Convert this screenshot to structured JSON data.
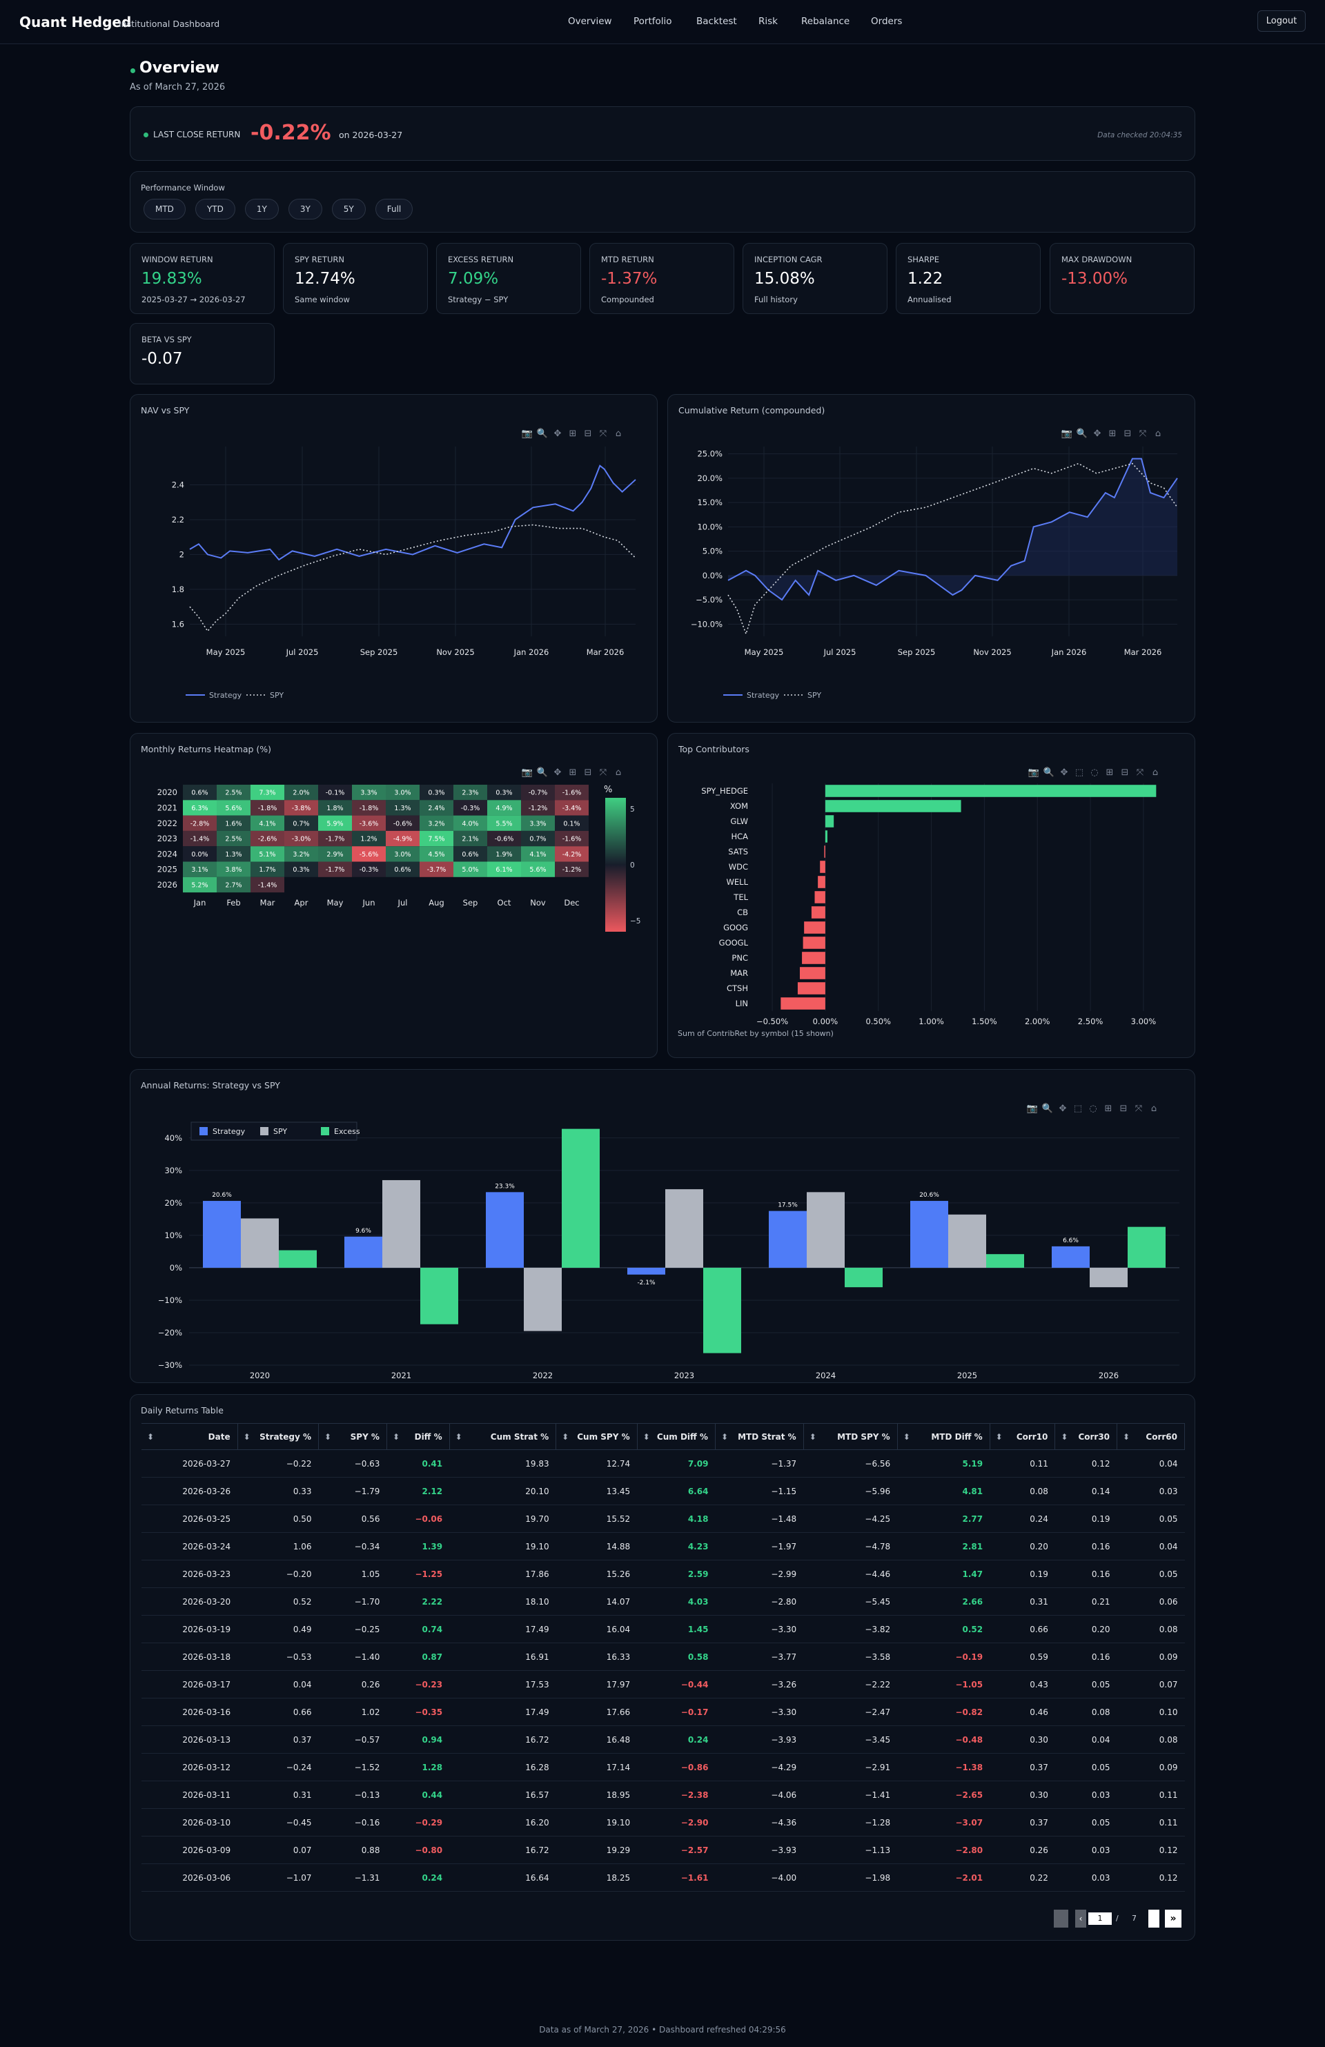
{
  "app": {
    "brand": "Quant Hedged",
    "subtitle": "Institutional Dashboard",
    "nav": [
      "Overview",
      "Portfolio",
      "Backtest",
      "Risk",
      "Rebalance",
      "Orders"
    ],
    "logout": "Logout"
  },
  "page": {
    "title": "Overview",
    "asof": "As of March 27, 2026"
  },
  "last_close": {
    "label": "LAST CLOSE RETURN",
    "value": "-0.22%",
    "on": "on 2026-03-27",
    "checked": "Data checked 20:04:35"
  },
  "perf_window": {
    "label": "Performance Window",
    "options": [
      "MTD",
      "YTD",
      "1Y",
      "3Y",
      "5Y",
      "Full"
    ]
  },
  "kpis": [
    {
      "label": "WINDOW RETURN",
      "value": "19.83%",
      "sub": "2025-03-27 → 2026-03-27",
      "tone": "pos"
    },
    {
      "label": "SPY RETURN",
      "value": "12.74%",
      "sub": "Same window",
      "tone": ""
    },
    {
      "label": "EXCESS RETURN",
      "value": "7.09%",
      "sub": "Strategy − SPY",
      "tone": "pos"
    },
    {
      "label": "MTD RETURN",
      "value": "-1.37%",
      "sub": "Compounded",
      "tone": "neg"
    },
    {
      "label": "INCEPTION CAGR",
      "value": "15.08%",
      "sub": "Full history",
      "tone": ""
    },
    {
      "label": "SHARPE",
      "value": "1.22",
      "sub": "Annualised",
      "tone": ""
    },
    {
      "label": "MAX DRAWDOWN",
      "value": "-13.00%",
      "sub": "",
      "tone": "neg"
    },
    {
      "label": "BETA VS SPY",
      "value": "-0.07",
      "sub": "",
      "tone": ""
    }
  ],
  "chart_data": [
    {
      "type": "line",
      "title": "NAV vs SPY",
      "x_ticks": [
        "May 2025",
        "Jul 2025",
        "Sep 2025",
        "Nov 2025",
        "Jan 2026",
        "Mar 2026"
      ],
      "y_ticks": [
        "1.6",
        "1.8",
        "2",
        "2.2",
        "2.4"
      ],
      "ylim": [
        1.53,
        2.62
      ],
      "series": [
        {
          "name": "Strategy",
          "color": "#5b7cf6",
          "style": "solid",
          "points": [
            [
              0,
              2.03
            ],
            [
              2,
              2.06
            ],
            [
              4,
              2.0
            ],
            [
              7,
              1.98
            ],
            [
              9,
              2.02
            ],
            [
              13,
              2.01
            ],
            [
              18,
              2.03
            ],
            [
              20,
              1.97
            ],
            [
              23,
              2.02
            ],
            [
              28,
              1.99
            ],
            [
              33,
              2.03
            ],
            [
              38,
              1.99
            ],
            [
              44,
              2.03
            ],
            [
              50,
              2.0
            ],
            [
              55,
              2.05
            ],
            [
              60,
              2.01
            ],
            [
              66,
              2.06
            ],
            [
              70,
              2.04
            ],
            [
              73,
              2.2
            ],
            [
              77,
              2.27
            ],
            [
              82,
              2.29
            ],
            [
              86,
              2.25
            ],
            [
              88,
              2.3
            ],
            [
              90,
              2.38
            ],
            [
              92,
              2.51
            ],
            [
              93,
              2.49
            ],
            [
              95,
              2.41
            ],
            [
              97,
              2.36
            ],
            [
              100,
              2.43
            ]
          ]
        },
        {
          "name": "SPY",
          "color": "#d8dce3",
          "style": "dotted",
          "points": [
            [
              0,
              1.7
            ],
            [
              2,
              1.64
            ],
            [
              4,
              1.56
            ],
            [
              6,
              1.62
            ],
            [
              8,
              1.66
            ],
            [
              11,
              1.75
            ],
            [
              15,
              1.82
            ],
            [
              20,
              1.88
            ],
            [
              26,
              1.94
            ],
            [
              32,
              1.99
            ],
            [
              38,
              2.03
            ],
            [
              44,
              2.0
            ],
            [
              50,
              2.04
            ],
            [
              56,
              2.08
            ],
            [
              62,
              2.11
            ],
            [
              68,
              2.13
            ],
            [
              72,
              2.16
            ],
            [
              77,
              2.17
            ],
            [
              83,
              2.15
            ],
            [
              88,
              2.15
            ],
            [
              93,
              2.1
            ],
            [
              96,
              2.08
            ],
            [
              100,
              1.98
            ]
          ]
        }
      ]
    },
    {
      "type": "line",
      "title": "Cumulative Return (compounded)",
      "x_ticks": [
        "May 2025",
        "Jul 2025",
        "Sep 2025",
        "Nov 2025",
        "Jan 2026",
        "Mar 2026"
      ],
      "y_ticks": [
        "−10.0%",
        "−5.0%",
        "0.0%",
        "5.0%",
        "10.0%",
        "15.0%",
        "20.0%",
        "25.0%"
      ],
      "ylim": [
        -12.5,
        26.5
      ],
      "series": [
        {
          "name": "Strategy",
          "color": "#5b7cf6",
          "style": "solid",
          "points": [
            [
              0,
              -1
            ],
            [
              4,
              1
            ],
            [
              6,
              0
            ],
            [
              9,
              -3
            ],
            [
              12,
              -5
            ],
            [
              15,
              -1
            ],
            [
              18,
              -4
            ],
            [
              20,
              1
            ],
            [
              24,
              -1
            ],
            [
              28,
              0
            ],
            [
              33,
              -2
            ],
            [
              38,
              1
            ],
            [
              44,
              0
            ],
            [
              50,
              -4
            ],
            [
              52,
              -3
            ],
            [
              55,
              0
            ],
            [
              60,
              -1
            ],
            [
              63,
              2
            ],
            [
              66,
              3
            ],
            [
              68,
              10
            ],
            [
              72,
              11
            ],
            [
              76,
              13
            ],
            [
              80,
              12
            ],
            [
              84,
              17
            ],
            [
              86,
              16
            ],
            [
              88,
              20
            ],
            [
              90,
              24
            ],
            [
              92,
              24
            ],
            [
              94,
              17
            ],
            [
              97,
              16
            ],
            [
              100,
              20
            ]
          ]
        },
        {
          "name": "SPY",
          "color": "#d8dce3",
          "style": "dotted",
          "points": [
            [
              0,
              -4
            ],
            [
              2,
              -7
            ],
            [
              4,
              -12
            ],
            [
              6,
              -6
            ],
            [
              8,
              -4
            ],
            [
              11,
              -1
            ],
            [
              14,
              2
            ],
            [
              18,
              4
            ],
            [
              22,
              6
            ],
            [
              27,
              8
            ],
            [
              32,
              10
            ],
            [
              38,
              13
            ],
            [
              44,
              14
            ],
            [
              50,
              16
            ],
            [
              56,
              18
            ],
            [
              62,
              20
            ],
            [
              68,
              22
            ],
            [
              72,
              21
            ],
            [
              78,
              23
            ],
            [
              82,
              21
            ],
            [
              86,
              22
            ],
            [
              90,
              23
            ],
            [
              94,
              19
            ],
            [
              97,
              18
            ],
            [
              100,
              14
            ]
          ]
        }
      ]
    },
    {
      "type": "heatmap",
      "title": "Monthly Returns Heatmap (%)",
      "colorbar_title": "%",
      "colorbar_ticks": [
        "5",
        "0",
        "−5"
      ],
      "zlim": [
        -6,
        6
      ],
      "columns": [
        "Jan",
        "Feb",
        "Mar",
        "Apr",
        "May",
        "Jun",
        "Jul",
        "Aug",
        "Sep",
        "Oct",
        "Nov",
        "Dec"
      ],
      "rows": [
        {
          "year": "2020",
          "values": [
            "0.6%",
            "2.5%",
            "7.3%",
            "2.0%",
            "-0.1%",
            "3.3%",
            "3.0%",
            "0.3%",
            "2.3%",
            "0.3%",
            "-0.7%",
            "-1.6%"
          ]
        },
        {
          "year": "2021",
          "values": [
            "6.3%",
            "5.6%",
            "-1.8%",
            "-3.8%",
            "1.8%",
            "-1.8%",
            "1.3%",
            "2.4%",
            "-0.3%",
            "4.9%",
            "-1.2%",
            "-3.4%"
          ]
        },
        {
          "year": "2022",
          "values": [
            "-2.8%",
            "1.6%",
            "4.1%",
            "0.7%",
            "5.9%",
            "-3.6%",
            "-0.6%",
            "3.2%",
            "4.0%",
            "5.5%",
            "3.3%",
            "0.1%"
          ]
        },
        {
          "year": "2023",
          "values": [
            "-1.4%",
            "2.5%",
            "-2.6%",
            "-3.0%",
            "-1.7%",
            "1.2%",
            "-4.9%",
            "7.5%",
            "2.1%",
            "-0.6%",
            "0.7%",
            "-1.6%"
          ]
        },
        {
          "year": "2024",
          "values": [
            "0.0%",
            "1.3%",
            "5.1%",
            "3.2%",
            "2.9%",
            "-5.6%",
            "3.0%",
            "4.5%",
            "0.6%",
            "1.9%",
            "4.1%",
            "-4.2%"
          ]
        },
        {
          "year": "2025",
          "values": [
            "3.1%",
            "3.8%",
            "1.7%",
            "0.3%",
            "-1.7%",
            "-0.3%",
            "0.6%",
            "-3.7%",
            "5.0%",
            "6.1%",
            "5.6%",
            "-1.2%"
          ]
        },
        {
          "year": "2026",
          "values": [
            "5.2%",
            "2.7%",
            "-1.4%",
            "",
            "",
            "",
            "",
            "",
            "",
            "",
            "",
            ""
          ]
        }
      ]
    },
    {
      "type": "bar",
      "orientation": "horizontal",
      "title": "Top Contributors",
      "xlabel": "Sum of ContribRet by symbol (15 shown)",
      "x_ticks": [
        "−0.50%",
        "0.00%",
        "0.50%",
        "1.00%",
        "1.50%",
        "2.00%",
        "2.50%",
        "3.00%"
      ],
      "xlim": [
        -0.65,
        3.3
      ],
      "categories": [
        "SPY_HEDGE",
        "XOM",
        "GLW",
        "HCA",
        "SATS",
        "WDC",
        "WELL",
        "TEL",
        "CB",
        "GOOG",
        "GOOGL",
        "PNC",
        "MAR",
        "CTSH",
        "LIN"
      ],
      "values": [
        3.12,
        1.28,
        0.08,
        0.02,
        -0.01,
        -0.05,
        -0.07,
        -0.1,
        -0.13,
        -0.2,
        -0.21,
        -0.22,
        -0.24,
        -0.26,
        -0.42
      ]
    },
    {
      "type": "bar",
      "title": "Annual Returns: Strategy vs SPY",
      "categories": [
        "2020",
        "2021",
        "2022",
        "2023",
        "2024",
        "2025",
        "2026"
      ],
      "y_ticks": [
        "−30%",
        "−20%",
        "−10%",
        "0%",
        "10%",
        "20%",
        "30%",
        "40%"
      ],
      "ylim": [
        -30,
        44
      ],
      "series": [
        {
          "name": "Strategy",
          "color": "#4f7cf7",
          "values": [
            20.6,
            9.6,
            23.3,
            -2.1,
            17.5,
            20.6,
            6.6
          ],
          "labels": [
            "20.6%",
            "9.6%",
            "23.3%",
            "-2.1%",
            "17.5%",
            "20.6%",
            "6.6%"
          ]
        },
        {
          "name": "SPY",
          "color": "#b0b5bf",
          "values": [
            15.2,
            27.0,
            -19.5,
            24.2,
            23.3,
            16.4,
            -6.0
          ]
        },
        {
          "name": "Excess",
          "color": "#3fd68c",
          "values": [
            5.4,
            -17.4,
            42.8,
            -26.3,
            -6.0,
            4.2,
            12.6
          ]
        }
      ]
    }
  ],
  "table": {
    "title": "Daily Returns Table",
    "headers": [
      "Date",
      "Strategy %",
      "SPY %",
      "Diff %",
      "Cum Strat %",
      "Cum SPY %",
      "Cum Diff %",
      "MTD Strat %",
      "MTD SPY %",
      "MTD Diff %",
      "Corr10",
      "Corr30",
      "Corr60"
    ],
    "rows": [
      [
        "2026-03-27",
        "−0.22",
        "−0.63",
        "0.41",
        "19.83",
        "12.74",
        "7.09",
        "−1.37",
        "−6.56",
        "5.19",
        "0.11",
        "0.12",
        "0.04"
      ],
      [
        "2026-03-26",
        "0.33",
        "−1.79",
        "2.12",
        "20.10",
        "13.45",
        "6.64",
        "−1.15",
        "−5.96",
        "4.81",
        "0.08",
        "0.14",
        "0.03"
      ],
      [
        "2026-03-25",
        "0.50",
        "0.56",
        "−0.06",
        "19.70",
        "15.52",
        "4.18",
        "−1.48",
        "−4.25",
        "2.77",
        "0.24",
        "0.19",
        "0.05"
      ],
      [
        "2026-03-24",
        "1.06",
        "−0.34",
        "1.39",
        "19.10",
        "14.88",
        "4.23",
        "−1.97",
        "−4.78",
        "2.81",
        "0.20",
        "0.16",
        "0.04"
      ],
      [
        "2026-03-23",
        "−0.20",
        "1.05",
        "−1.25",
        "17.86",
        "15.26",
        "2.59",
        "−2.99",
        "−4.46",
        "1.47",
        "0.19",
        "0.16",
        "0.05"
      ],
      [
        "2026-03-20",
        "0.52",
        "−1.70",
        "2.22",
        "18.10",
        "14.07",
        "4.03",
        "−2.80",
        "−5.45",
        "2.66",
        "0.31",
        "0.21",
        "0.06"
      ],
      [
        "2026-03-19",
        "0.49",
        "−0.25",
        "0.74",
        "17.49",
        "16.04",
        "1.45",
        "−3.30",
        "−3.82",
        "0.52",
        "0.66",
        "0.20",
        "0.08"
      ],
      [
        "2026-03-18",
        "−0.53",
        "−1.40",
        "0.87",
        "16.91",
        "16.33",
        "0.58",
        "−3.77",
        "−3.58",
        "−0.19",
        "0.59",
        "0.16",
        "0.09"
      ],
      [
        "2026-03-17",
        "0.04",
        "0.26",
        "−0.23",
        "17.53",
        "17.97",
        "−0.44",
        "−3.26",
        "−2.22",
        "−1.05",
        "0.43",
        "0.05",
        "0.07"
      ],
      [
        "2026-03-16",
        "0.66",
        "1.02",
        "−0.35",
        "17.49",
        "17.66",
        "−0.17",
        "−3.30",
        "−2.47",
        "−0.82",
        "0.46",
        "0.08",
        "0.10"
      ],
      [
        "2026-03-13",
        "0.37",
        "−0.57",
        "0.94",
        "16.72",
        "16.48",
        "0.24",
        "−3.93",
        "−3.45",
        "−0.48",
        "0.30",
        "0.04",
        "0.08"
      ],
      [
        "2026-03-12",
        "−0.24",
        "−1.52",
        "1.28",
        "16.28",
        "17.14",
        "−0.86",
        "−4.29",
        "−2.91",
        "−1.38",
        "0.37",
        "0.05",
        "0.09"
      ],
      [
        "2026-03-11",
        "0.31",
        "−0.13",
        "0.44",
        "16.57",
        "18.95",
        "−2.38",
        "−4.06",
        "−1.41",
        "−2.65",
        "0.30",
        "0.03",
        "0.11"
      ],
      [
        "2026-03-10",
        "−0.45",
        "−0.16",
        "−0.29",
        "16.20",
        "19.10",
        "−2.90",
        "−4.36",
        "−1.28",
        "−3.07",
        "0.37",
        "0.05",
        "0.11"
      ],
      [
        "2026-03-09",
        "0.07",
        "0.88",
        "−0.80",
        "16.72",
        "19.29",
        "−2.57",
        "−3.93",
        "−1.13",
        "−2.80",
        "0.26",
        "0.03",
        "0.12"
      ],
      [
        "2026-03-06",
        "−1.07",
        "−1.31",
        "0.24",
        "16.64",
        "18.25",
        "−1.61",
        "−4.00",
        "−1.98",
        "−2.01",
        "0.22",
        "0.03",
        "0.12"
      ]
    ],
    "page": "1",
    "page_sep": "/",
    "pages": "7"
  },
  "footer": "Data as of March 27, 2026 • Dashboard refreshed 04:29:56"
}
